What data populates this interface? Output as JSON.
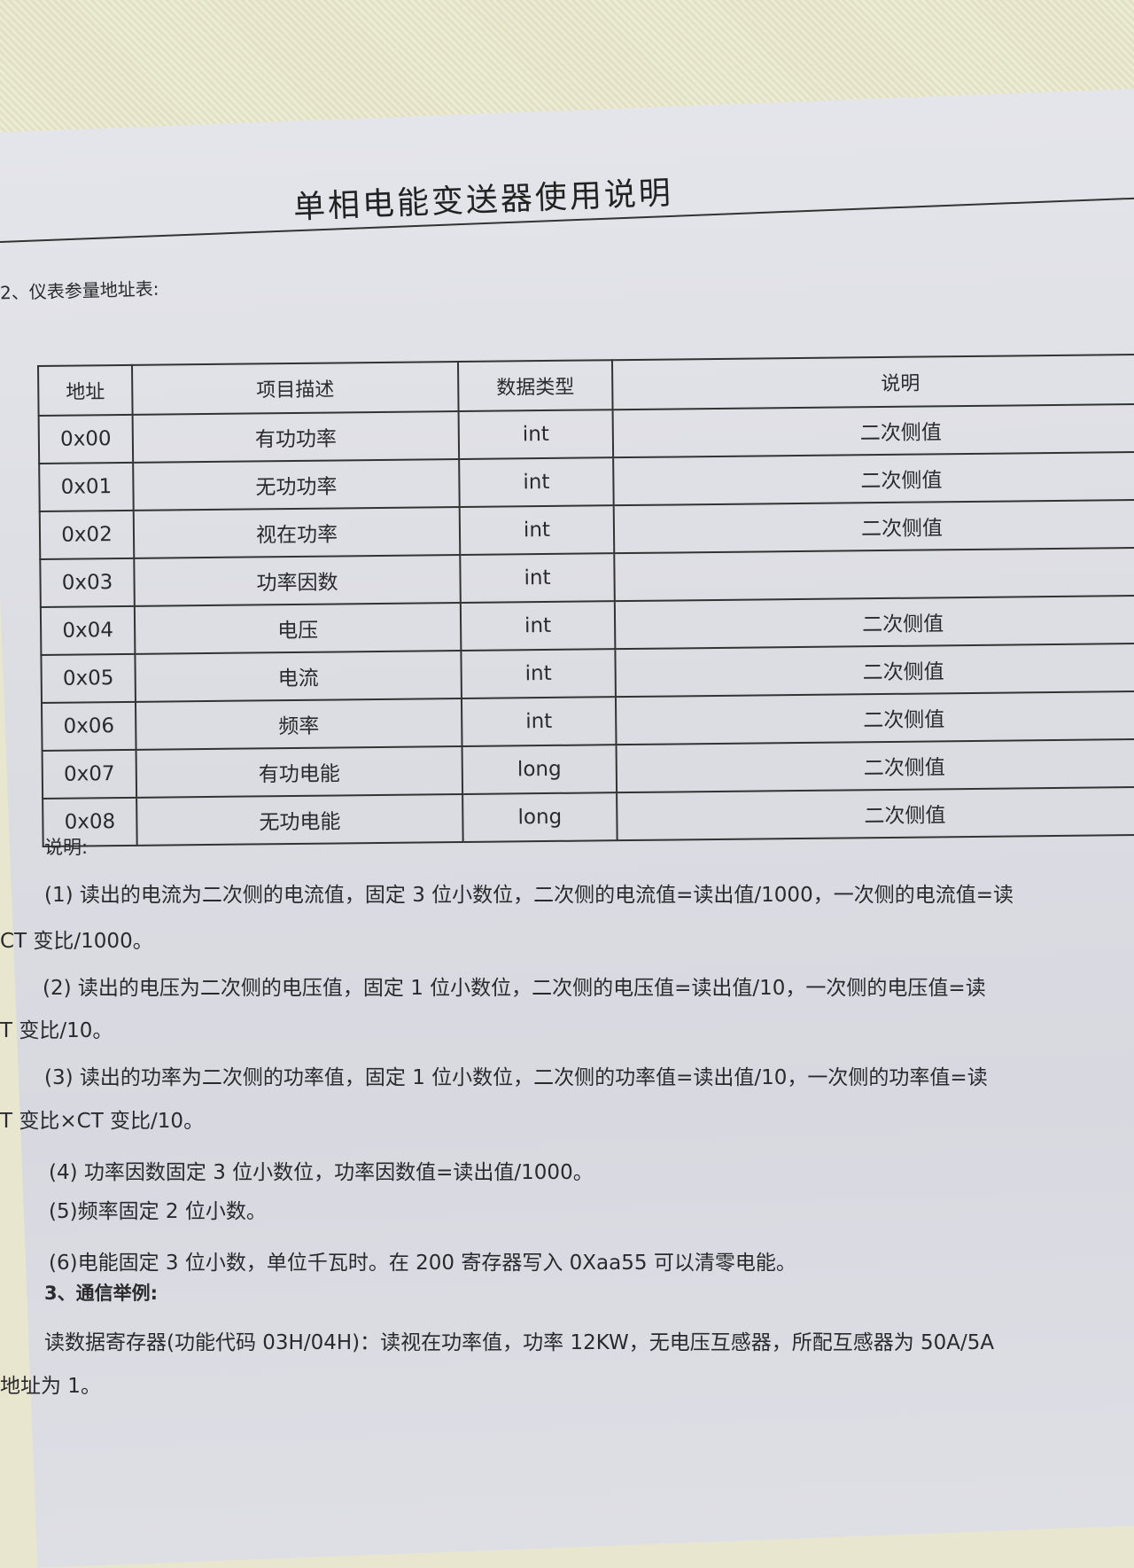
{
  "title": "单相电能变送器使用说明",
  "section2": "2、仪表参量地址表:",
  "table": {
    "headers": [
      "地址",
      "项目描述",
      "数据类型",
      "说明"
    ],
    "rows": [
      [
        "0x00",
        "有功功率",
        "int",
        "二次侧值"
      ],
      [
        "0x01",
        "无功功率",
        "int",
        "二次侧值"
      ],
      [
        "0x02",
        "视在功率",
        "int",
        "二次侧值"
      ],
      [
        "0x03",
        "功率因数",
        "int",
        ""
      ],
      [
        "0x04",
        "电压",
        "int",
        "二次侧值"
      ],
      [
        "0x05",
        "电流",
        "int",
        "二次侧值"
      ],
      [
        "0x06",
        "频率",
        "int",
        "二次侧值"
      ],
      [
        "0x07",
        "有功电能",
        "long",
        "二次侧值"
      ],
      [
        "0x08",
        "无功电能",
        "long",
        "二次侧值"
      ]
    ]
  },
  "notes": {
    "heading": "说明:",
    "n1a": "(1) 读出的电流为二次侧的电流值，固定 3 位小数位，二次侧的电流值=读出值/1000，一次侧的电流值=读",
    "n1b": "CT 变比/1000。",
    "n2a": "(2) 读出的电压为二次侧的电压值，固定 1 位小数位，二次侧的电压值=读出值/10，一次侧的电压值=读",
    "n2b": "T 变比/10。",
    "n3a": "(3) 读出的功率为二次侧的功率值，固定 1 位小数位，二次侧的功率值=读出值/10，一次侧的功率值=读",
    "n3b": "T 变比×CT 变比/10。",
    "n4": "(4) 功率因数固定 3 位小数位，功率因数值=读出值/1000。",
    "n5": "(5)频率固定 2 位小数。",
    "n6": "(6)电能固定 3 位小数，单位千瓦时。在 200 寄存器写入 0Xaa55 可以清零电能。"
  },
  "section3": "3、通信举例:",
  "example_a": "读数据寄存器(功能代码 03H/04H)：读视在功率值，功率 12KW，无电压互感器，所配互感器为 50A/5A",
  "example_b": "地址为 1。"
}
